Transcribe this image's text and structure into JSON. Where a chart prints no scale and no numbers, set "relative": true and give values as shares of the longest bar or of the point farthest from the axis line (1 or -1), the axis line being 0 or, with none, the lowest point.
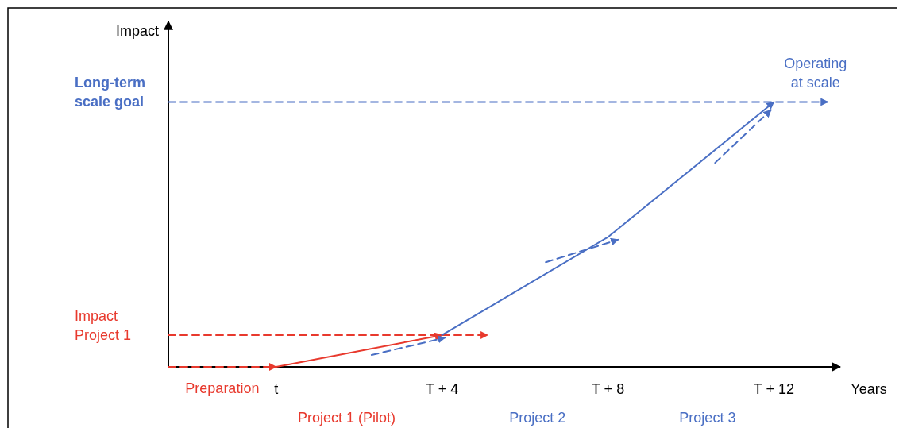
{
  "chart_data": {
    "type": "line",
    "relative": true,
    "xlabel": "Years",
    "ylabel": "Impact",
    "xlim": [
      -2.6,
      13.6
    ],
    "xticks": [
      {
        "value": 0,
        "label": "t"
      },
      {
        "value": 4,
        "label": "T + 4"
      },
      {
        "value": 8,
        "label": "T + 8"
      },
      {
        "value": 12,
        "label": "T + 12"
      }
    ],
    "series": [
      {
        "name": "Preparation",
        "color": "#e8392d",
        "line_style": "dashed",
        "x": [
          -2.6,
          0
        ],
        "values": [
          0,
          0
        ]
      },
      {
        "name": "Impact Project 1",
        "color": "#e8392d",
        "line_style": "dashed",
        "x": [
          -2.6,
          5.1
        ],
        "values": [
          0.12,
          0.12
        ]
      },
      {
        "name": "Long-term scale goal",
        "color": "#4a6fc4",
        "line_style": "dashed",
        "x": [
          -2.6,
          13.3
        ],
        "values": [
          1,
          1
        ]
      },
      {
        "color": "#e8392d",
        "line_style": "solid",
        "x": [
          0,
          4
        ],
        "values": [
          0,
          0.12
        ]
      },
      {
        "color": "#4a6fc4",
        "line_style": "solid",
        "x": [
          4,
          8,
          12
        ],
        "values": [
          0.12,
          0.49,
          1
        ]
      },
      {
        "color": "#4a6fc4",
        "line_style": "dashed",
        "x": [
          2.3,
          4.07
        ],
        "values": [
          0.045,
          0.11
        ]
      },
      {
        "color": "#4a6fc4",
        "line_style": "dashed",
        "x": [
          6.5,
          8.24
        ],
        "values": [
          0.395,
          0.48
        ]
      },
      {
        "color": "#4a6fc4",
        "line_style": "dashed",
        "x": [
          10.58,
          11.93
        ],
        "values": [
          0.77,
          0.97
        ]
      }
    ],
    "annotations": [
      "Project 1 (Pilot)",
      "Project 2",
      "Project 3",
      {
        "text": "Operating at scale",
        "x": 13,
        "y": 1
      }
    ]
  }
}
